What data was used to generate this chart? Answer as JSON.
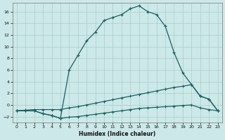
{
  "xlabel": "Humidex (Indice chaleur)",
  "background_color": "#cce8e8",
  "grid_color": "#aacccc",
  "line_color": "#1a6060",
  "xlim": [
    -0.5,
    23.5
  ],
  "ylim": [
    -3.0,
    17.5
  ],
  "yticks": [
    -2,
    0,
    2,
    4,
    6,
    8,
    10,
    12,
    14,
    16
  ],
  "xticks": [
    0,
    1,
    2,
    3,
    4,
    5,
    6,
    7,
    8,
    9,
    10,
    11,
    12,
    13,
    14,
    15,
    16,
    17,
    18,
    19,
    20,
    21,
    22,
    23
  ],
  "main_x": [
    0,
    1,
    2,
    3,
    4,
    5,
    6,
    7,
    8,
    9,
    10,
    11,
    12,
    13,
    14,
    15,
    16,
    17,
    18,
    19,
    20,
    21,
    22,
    23
  ],
  "main_y": [
    -1,
    -1,
    -1,
    -1.5,
    -1.8,
    -2.3,
    6.0,
    8.5,
    11.0,
    12.5,
    14.5,
    15.0,
    15.5,
    16.5,
    17.0,
    16.0,
    15.5,
    13.5,
    9.0,
    5.5,
    3.5,
    1.5,
    1.0,
    -1.0
  ],
  "mid_x": [
    0,
    1,
    2,
    3,
    4,
    5,
    6,
    7,
    8,
    9,
    10,
    11,
    12,
    13,
    14,
    15,
    16,
    17,
    18,
    19,
    20,
    21,
    22,
    23
  ],
  "mid_y": [
    -1,
    -0.9,
    -0.8,
    -0.8,
    -0.8,
    -0.8,
    -0.5,
    -0.3,
    0.0,
    0.3,
    0.6,
    0.9,
    1.2,
    1.5,
    1.8,
    2.1,
    2.4,
    2.7,
    3.0,
    3.2,
    3.5,
    1.5,
    1.0,
    -1.0
  ],
  "bot_x": [
    0,
    1,
    2,
    3,
    4,
    5,
    6,
    7,
    8,
    9,
    10,
    11,
    12,
    13,
    14,
    15,
    16,
    17,
    18,
    19,
    20,
    21,
    22,
    23
  ],
  "bot_y": [
    -1,
    -1,
    -1,
    -1.5,
    -1.8,
    -2.3,
    -2.1,
    -2.0,
    -1.8,
    -1.6,
    -1.4,
    -1.2,
    -1.0,
    -0.8,
    -0.6,
    -0.5,
    -0.4,
    -0.3,
    -0.2,
    -0.1,
    -0.0,
    -0.5,
    -0.8,
    -1.0
  ]
}
